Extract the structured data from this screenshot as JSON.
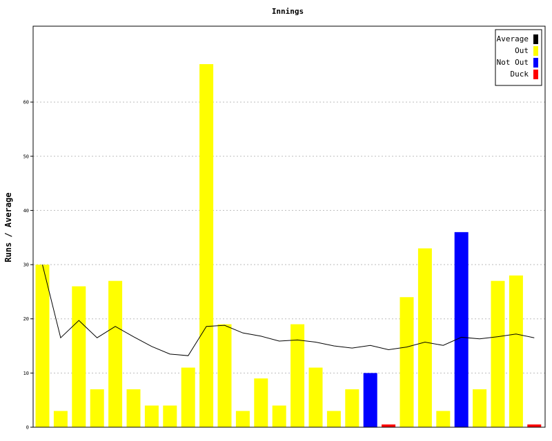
{
  "chart_data": {
    "type": "bar",
    "title": "Innings",
    "xlabel": "",
    "ylabel": "Runs / Average",
    "ylim": [
      0,
      74
    ],
    "yticks": [
      0,
      10,
      20,
      30,
      40,
      50,
      60
    ],
    "grid": true,
    "legend_position": "top-right",
    "legend": [
      {
        "label": "Average",
        "color": "#000000"
      },
      {
        "label": "Out",
        "color": "#ffff00"
      },
      {
        "label": "Not Out",
        "color": "#0000ff"
      },
      {
        "label": "Duck",
        "color": "#ff0000"
      }
    ],
    "innings": [
      {
        "runs": 30,
        "status": "Out"
      },
      {
        "runs": 3,
        "status": "Out"
      },
      {
        "runs": 26,
        "status": "Out"
      },
      {
        "runs": 7,
        "status": "Out"
      },
      {
        "runs": 27,
        "status": "Out"
      },
      {
        "runs": 7,
        "status": "Out"
      },
      {
        "runs": 4,
        "status": "Out"
      },
      {
        "runs": 4,
        "status": "Out"
      },
      {
        "runs": 11,
        "status": "Out"
      },
      {
        "runs": 67,
        "status": "Out"
      },
      {
        "runs": 19,
        "status": "Out"
      },
      {
        "runs": 3,
        "status": "Out"
      },
      {
        "runs": 9,
        "status": "Out"
      },
      {
        "runs": 4,
        "status": "Out"
      },
      {
        "runs": 19,
        "status": "Out"
      },
      {
        "runs": 11,
        "status": "Out"
      },
      {
        "runs": 3,
        "status": "Out"
      },
      {
        "runs": 7,
        "status": "Out"
      },
      {
        "runs": 10,
        "status": "Not Out"
      },
      {
        "runs": 0,
        "status": "Duck"
      },
      {
        "runs": 24,
        "status": "Out"
      },
      {
        "runs": 33,
        "status": "Out"
      },
      {
        "runs": 3,
        "status": "Out"
      },
      {
        "runs": 36,
        "status": "Not Out"
      },
      {
        "runs": 7,
        "status": "Out"
      },
      {
        "runs": 27,
        "status": "Out"
      },
      {
        "runs": 28,
        "status": "Out"
      },
      {
        "runs": 0,
        "status": "Duck"
      }
    ],
    "average": [
      30,
      16.5,
      19.7,
      16.5,
      18.6,
      16.7,
      14.9,
      13.5,
      13.2,
      18.6,
      18.8,
      17.4,
      16.8,
      15.9,
      16.1,
      15.7,
      15.0,
      14.6,
      15.1,
      14.3,
      14.8,
      15.7,
      15.1,
      16.6,
      16.3,
      16.7,
      17.2,
      16.5
    ]
  }
}
